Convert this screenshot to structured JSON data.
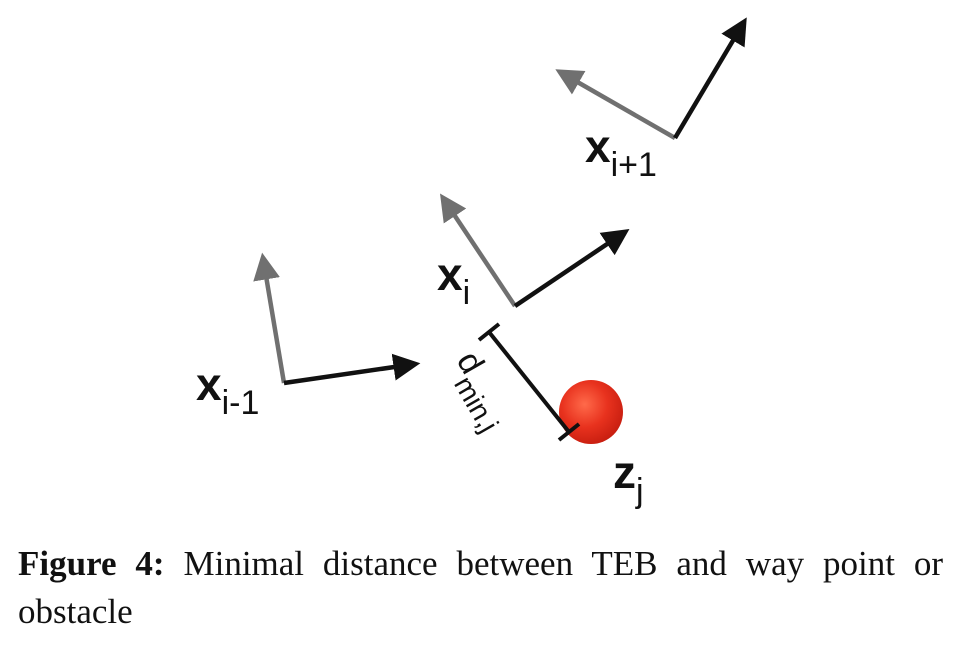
{
  "figure": {
    "poses": [
      {
        "name": "x",
        "subscript": "i-1"
      },
      {
        "name": "x",
        "subscript": "i"
      },
      {
        "name": "x",
        "subscript": "i+1"
      }
    ],
    "distance_label": "d",
    "distance_subscript": "min,j",
    "obstacle": {
      "name": "z",
      "subscript": "j",
      "color": "#e8321e"
    },
    "colors": {
      "forward_axis": "#111111",
      "side_axis": "#707070"
    }
  },
  "caption": {
    "label": "Figure 4:",
    "text": "Minimal distance between TEB and way point or obstacle"
  }
}
